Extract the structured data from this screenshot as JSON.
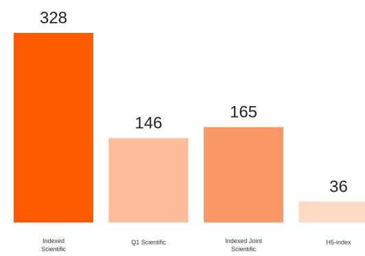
{
  "chart_data": {
    "type": "bar",
    "categories": [
      [
        "Indexed",
        "Scientific"
      ],
      [
        "Q1 Scientific"
      ],
      [
        "Indexed Joint",
        "Scientific"
      ],
      [
        "H5-index"
      ]
    ],
    "values": [
      328,
      146,
      165,
      36
    ],
    "value_labels": [
      "328",
      "146",
      "165",
      "36"
    ],
    "colors": [
      "#ff5a00",
      "#fdbd98",
      "#fb9966",
      "#fddac6"
    ],
    "title": "",
    "xlabel": "",
    "ylabel": "",
    "ylim": [
      0,
      328
    ],
    "grid": false,
    "legend": "none"
  }
}
